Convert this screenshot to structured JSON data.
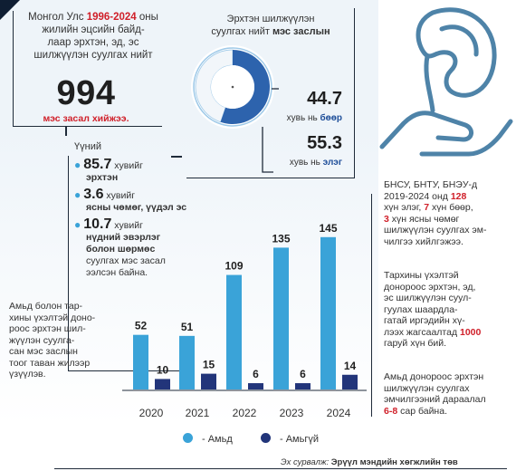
{
  "intro": {
    "line1_pre": "Монгол Улс ",
    "years": "1996-2024",
    "line1_post": " оны",
    "line2": "жилийн эцсийн байд-",
    "line3": "лаар эрхтэн, эд, эс",
    "line4": "шилжүүлэн суулгах нийт",
    "total": "994",
    "total_label": "мэс засал хийжээ."
  },
  "of_which": "Үүний",
  "items": [
    {
      "value": "85.7",
      "unit": " хувийг",
      "lines": [
        "эрхтэн"
      ]
    },
    {
      "value": "3.6",
      "unit": " хувийг",
      "lines": [
        "ясны чөмөг, үүдэл эс"
      ]
    },
    {
      "value": "10.7",
      "unit": " хувийг",
      "lines": [
        "нүдний эвэрлэг",
        "болон шөрмөс"
      ]
    }
  ],
  "items_tail": [
    "суулгах мэс засал",
    "ээлсэн байна."
  ],
  "side_text": [
    "Амьд болон тар-",
    "хины үхэлтэй доно-",
    "роос эрхтэн шил-",
    "жүүлэн суулга-",
    "сан мэс заслын",
    "тоог таван жилээр",
    "үзүүлэв."
  ],
  "donut": {
    "title_line1": "Эрхтэн шилжүүлэн",
    "title_line2_pre": "суулгах нийт ",
    "title_line2_bold": "мэс заслын",
    "kidney_value": "44.7",
    "kidney_unit": "хувь нь ",
    "kidney_label": "бөөр",
    "liver_value": "55.3",
    "liver_unit": "хувь нь ",
    "liver_label": "элэг",
    "colors": {
      "kidney": "#f2f6fa",
      "liver": "#2d63ad",
      "ring": "#9ec9e8"
    }
  },
  "right_para1": {
    "l1": "БНСУ, БНТУ, БНЭУ-д",
    "l2_pre": "2019-2024 онд ",
    "l2_num": "128",
    "l3_pre": "хүн элэг, ",
    "l3_num": "7",
    "l3_post": " хүн бөөр,",
    "l4_num": "3",
    "l4_post": " хүн ясны чөмөг",
    "l5": "шилжүүлэн суулгах эм-",
    "l6": "чилгээ хийлгэжээ."
  },
  "right_para2": {
    "l1": "Тархины үхэлтэй",
    "l2": "донороос эрхтэн, эд,",
    "l3": "эс шилжүүлэн суул-",
    "l4": "гуулах шаардла-",
    "l5": "гатай иргэдийн хү-",
    "l6_pre": "лээх жагсаалтад ",
    "l6_num": "1000",
    "l7": "гаруй хүн бий."
  },
  "right_para3": {
    "l1": "Амьд донороос эрхтэн",
    "l2": "шилжүүлэн суулгах",
    "l3": "эмчилгээний дараалал",
    "l4_num": "6-8",
    "l4_post": " сар байна."
  },
  "legend": {
    "living": "- Амьд",
    "deceased": "- Амьгүй"
  },
  "colors": {
    "living": "#3aa3d8",
    "deceased": "#22357a",
    "red": "#d0202a"
  },
  "source": {
    "label": "Эх сурвалж: ",
    "name": "Эрүүл мэндийн хөгжлийн төв"
  },
  "chart_data": {
    "type": "bar",
    "categories": [
      "2020",
      "2021",
      "2022",
      "2023",
      "2024"
    ],
    "series": [
      {
        "name": "Амьд",
        "values": [
          52,
          51,
          109,
          135,
          145
        ]
      },
      {
        "name": "Амьгүй",
        "values": [
          10,
          15,
          6,
          6,
          14
        ]
      }
    ],
    "ylim": [
      0,
      150
    ],
    "grid": false,
    "legend": "bottom"
  }
}
